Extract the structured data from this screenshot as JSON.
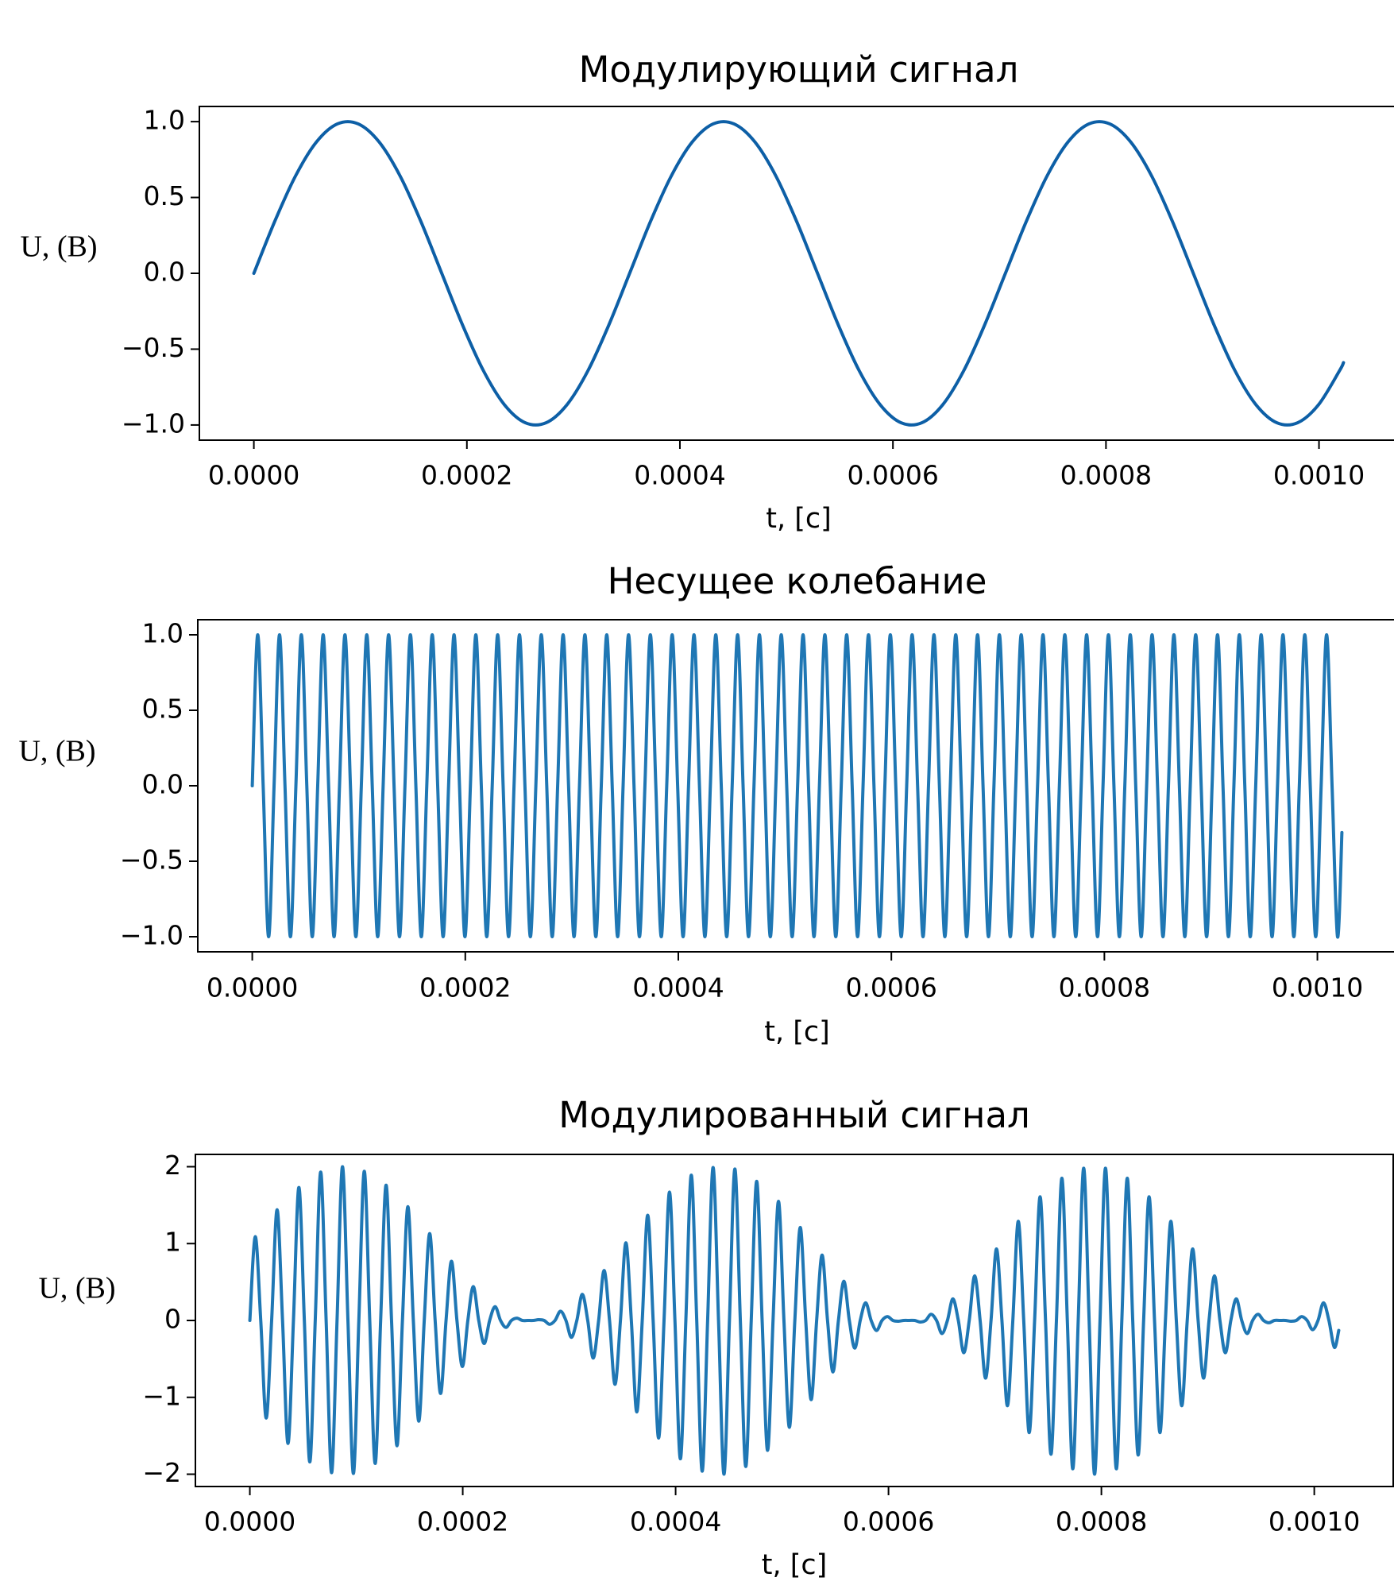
{
  "chart_data": [
    {
      "type": "line",
      "title": "Модулирующий сигнал",
      "xlabel": "t, [с]",
      "ylabel": "U, (В)",
      "color": "#0d5fa6",
      "x": [
        0,
        1.96e-05,
        3.92e-05,
        5.88e-05,
        7.84e-05,
        9.8e-05,
        0.0001176,
        0.0001372,
        0.0001568,
        0.0001764,
        0.000196,
        0.0002156,
        0.0002352,
        0.0002548,
        0.0002744,
        0.000294,
        0.0003136,
        0.0003332,
        0.0003528,
        0.0003724,
        0.000392,
        0.0004116,
        0.0004312,
        0.0004508,
        0.0004704,
        0.00049,
        0.0005096,
        0.0005292,
        0.0005488,
        0.0005684,
        0.000588,
        0.0006076,
        0.0006272,
        0.0006468,
        0.0006664,
        0.000686,
        0.0007056,
        0.0007252,
        0.0007448,
        0.0007644,
        0.000784,
        0.0008036,
        0.0008232,
        0.0008428,
        0.0008624,
        0.000882,
        0.0009016,
        0.0009212,
        0.0009408,
        0.0009604,
        0.00098,
        0.0009996,
        0.0010192,
        0.001023
      ],
      "values": [
        0,
        0.342,
        0.643,
        0.866,
        0.985,
        0.985,
        0.866,
        0.643,
        0.342,
        0,
        -0.342,
        -0.643,
        -0.866,
        -0.985,
        -0.985,
        -0.866,
        -0.643,
        -0.342,
        0,
        0.342,
        0.643,
        0.866,
        0.985,
        0.985,
        0.866,
        0.643,
        0.342,
        0,
        -0.342,
        -0.643,
        -0.866,
        -0.985,
        -0.985,
        -0.866,
        -0.643,
        -0.342,
        0,
        0.342,
        0.643,
        0.866,
        0.985,
        0.985,
        0.866,
        0.643,
        0.342,
        0,
        -0.342,
        -0.643,
        -0.866,
        -0.985,
        -0.985,
        -0.866,
        -0.643,
        -0.589
      ],
      "xlim": [
        -5.115e-05,
        0.00107415
      ],
      "ylim": [
        -1.1,
        1.1
      ],
      "xticks": [
        {
          "value": 0,
          "label": "0.0000"
        },
        {
          "value": 0.0002,
          "label": "0.0002"
        },
        {
          "value": 0.0004,
          "label": "0.0004"
        },
        {
          "value": 0.0006,
          "label": "0.0006"
        },
        {
          "value": 0.0008,
          "label": "0.0008"
        },
        {
          "value": 0.001,
          "label": "0.0010"
        }
      ],
      "yticks": [
        {
          "value": -1,
          "label": "−1.0"
        },
        {
          "value": -0.5,
          "label": "−0.5"
        },
        {
          "value": 0,
          "label": "0.0"
        },
        {
          "value": 0.5,
          "label": "0.5"
        },
        {
          "value": 1,
          "label": "1.0"
        }
      ]
    },
    {
      "type": "line",
      "title": "Несущее колебание",
      "xlabel": "t, [с]",
      "ylabel": "U, (В)",
      "color": "#1f77b4",
      "x": [
        0,
        5.12e-06,
        1.024e-05,
        1.536e-05,
        2.048e-05,
        2.56e-05,
        3.072e-05,
        3.584e-05,
        4.096e-05,
        4.608e-05,
        5.12e-05,
        5.632e-05,
        6.144e-05,
        6.656e-05,
        7.168e-05,
        7.68e-05,
        8.192e-05,
        8.704e-05,
        9.216e-05,
        9.728e-05,
        0.0001024,
        0.00010752,
        0.00011264,
        0.00011776,
        0.00012288,
        0.000128,
        0.00013312,
        0.00013824,
        0.00014336,
        0.00014848,
        0.0001536,
        0.00015872,
        0.00016384,
        0.00016896,
        0.00017408,
        0.0001792,
        0.00018432,
        0.00018944,
        0.00019456,
        0.00019968,
        0.0002048,
        0.00020992,
        0.00021504,
        0.00022016,
        0.00022528,
        0.0002304,
        0.00023552,
        0.00024064,
        0.00024576,
        0.00025088,
        0.000256,
        0.00026112,
        0.00026624,
        0.00027136,
        0.00027648,
        0.0002816,
        0.00028672,
        0.00029184,
        0.00029696,
        0.00030208,
        0.0003072,
        0.00031232,
        0.00031744,
        0.00032256,
        0.00032768,
        0.0003328,
        0.00033792,
        0.00034304,
        0.00034816,
        0.00035328,
        0.0003584,
        0.00036352,
        0.00036864,
        0.00037376,
        0.00037888,
        0.000384,
        0.00038912,
        0.00039424,
        0.00039936,
        0.00040448,
        0.0004096,
        0.00041472,
        0.00041984,
        0.00042496,
        0.00043008,
        0.0004352,
        0.00044032,
        0.00044544,
        0.00045056,
        0.00045568,
        0.0004608,
        0.00046592,
        0.00047104,
        0.00047616,
        0.00048128,
        0.0004864,
        0.00049152,
        0.00049664,
        0.00050176,
        0.00050688,
        0.000512,
        0.00051712,
        0.00052224,
        0.00052736,
        0.00053248,
        0.0005376,
        0.00054272,
        0.00054784,
        0.00055296,
        0.00055808,
        0.0005632,
        0.00056832,
        0.00057344,
        0.00057856,
        0.00058368,
        0.0005888,
        0.00059392,
        0.00059904,
        0.00060416,
        0.00060928,
        0.0006144,
        0.00061952,
        0.00062464,
        0.00062976,
        0.00063488,
        0.00064,
        0.00064512,
        0.00065024,
        0.00065536,
        0.00066048,
        0.0006656,
        0.00067072,
        0.00067584,
        0.00068096,
        0.00068608,
        0.0006912,
        0.00069632,
        0.00070144,
        0.00070656,
        0.00071168,
        0.0007168,
        0.00072192,
        0.00072704,
        0.00073216,
        0.00073728,
        0.0007424,
        0.00074752,
        0.00075264,
        0.00075776,
        0.00076288,
        0.000768,
        0.00077312,
        0.00077824,
        0.00078336,
        0.00078848,
        0.0007936,
        0.00079872,
        0.00080384,
        0.00080896,
        0.00081408,
        0.0008192,
        0.00082432,
        0.00082944,
        0.00083456,
        0.00083968,
        0.0008448,
        0.00084992,
        0.00085504,
        0.00086016,
        0.00086528,
        0.0008704,
        0.00087552,
        0.00088064,
        0.00088576,
        0.00089088,
        0.000896,
        0.00090112,
        0.00090624,
        0.00091136,
        0.00091648,
        0.0009216,
        0.00092672,
        0.00093184,
        0.00093696,
        0.00094208,
        0.0009472,
        0.00095232,
        0.00095744,
        0.00096256,
        0.00096768,
        0.0009728,
        0.00097792,
        0.00098304,
        0.00098816,
        0.00099328,
        0.0009984,
        0.00100352,
        0.00100864,
        0.00101376,
        0.00101888,
        0.001023
      ],
      "values": [
        0,
        1,
        0,
        -1,
        0,
        1,
        0,
        -1,
        0,
        1,
        0,
        -1,
        0,
        1,
        0,
        -1,
        0,
        1,
        0,
        -1,
        0,
        1,
        0,
        -1,
        0,
        1,
        0,
        -1,
        0,
        1,
        0,
        -1,
        0,
        1,
        0,
        -1,
        0,
        1,
        0,
        -1,
        0,
        1,
        0,
        -1,
        0,
        1,
        0,
        -1,
        0,
        1,
        0,
        -1,
        0,
        1,
        0,
        -1,
        0,
        1,
        0,
        -1,
        0,
        1,
        0,
        -1,
        0,
        1,
        0,
        -1,
        0,
        1,
        0,
        -1,
        0,
        1,
        0,
        -1,
        0,
        1,
        0,
        -1,
        0,
        1,
        0,
        -1,
        0,
        1,
        0,
        -1,
        0,
        1,
        0,
        -1,
        0,
        1,
        0,
        -1,
        0,
        1,
        0,
        -1,
        0,
        1,
        0,
        -1,
        0,
        1,
        0,
        -1,
        0,
        1,
        0,
        -1,
        0,
        1,
        0,
        -1,
        0,
        1,
        0,
        -1,
        0,
        1,
        0,
        -1,
        0,
        1,
        0,
        -1,
        0,
        1,
        0,
        -1,
        0,
        1,
        0,
        -1,
        0,
        1,
        0,
        -1,
        0,
        1,
        0,
        -1,
        0,
        1,
        0,
        -1,
        0,
        1,
        0,
        -1,
        0,
        1,
        0,
        -1,
        0,
        1,
        0,
        -1,
        0,
        1,
        0,
        -1,
        0,
        1,
        0,
        -1,
        0,
        1,
        0,
        -1,
        0,
        1,
        0,
        -1,
        0,
        1,
        0,
        -1,
        0,
        1,
        0,
        -1,
        0,
        1,
        0,
        -1,
        0,
        1,
        0,
        -1,
        0,
        1,
        0,
        -1,
        0,
        1,
        0,
        -1,
        -0.31
      ],
      "xlim": [
        -5.115e-05,
        0.00107415
      ],
      "ylim": [
        -1.1,
        1.1
      ],
      "xticks": [
        {
          "value": 0,
          "label": "0.0000"
        },
        {
          "value": 0.0002,
          "label": "0.0002"
        },
        {
          "value": 0.0004,
          "label": "0.0004"
        },
        {
          "value": 0.0006,
          "label": "0.0006"
        },
        {
          "value": 0.0008,
          "label": "0.0008"
        },
        {
          "value": 0.001,
          "label": "0.0010"
        }
      ],
      "yticks": [
        {
          "value": -1,
          "label": "−1.0"
        },
        {
          "value": -0.5,
          "label": "−0.5"
        },
        {
          "value": 0,
          "label": "0.0"
        },
        {
          "value": 0.5,
          "label": "0.5"
        },
        {
          "value": 1,
          "label": "1.0"
        }
      ]
    },
    {
      "type": "line",
      "title": "Модулированный сигнал",
      "xlabel": "t, [с]",
      "ylabel": "U, (В)",
      "color": "#1f77b4",
      "x": [
        0,
        5.12e-06,
        1.024e-05,
        1.536e-05,
        2.048e-05,
        2.56e-05,
        3.072e-05,
        3.584e-05,
        4.096e-05,
        4.608e-05,
        5.12e-05,
        5.632e-05,
        6.144e-05,
        6.656e-05,
        7.168e-05,
        7.68e-05,
        8.192e-05,
        8.704e-05,
        9.216e-05,
        9.728e-05,
        0.0001024,
        0.00010752,
        0.00011264,
        0.00011776,
        0.00012288,
        0.000128,
        0.00013312,
        0.00013824,
        0.00014336,
        0.00014848,
        0.0001536,
        0.00015872,
        0.00016384,
        0.00016896,
        0.00017408,
        0.0001792,
        0.00018432,
        0.00018944,
        0.00019456,
        0.00019968,
        0.0002048,
        0.00020992,
        0.00021504,
        0.00022016,
        0.00022528,
        0.0002304,
        0.00023552,
        0.00024064,
        0.00024576,
        0.00025088,
        0.000256,
        0.00026112,
        0.00026624,
        0.00027136,
        0.00027648,
        0.0002816,
        0.00028672,
        0.00029184,
        0.00029696,
        0.00030208,
        0.0003072,
        0.00031232,
        0.00031744,
        0.00032256,
        0.00032768,
        0.0003328,
        0.00033792,
        0.00034304,
        0.00034816,
        0.00035328,
        0.0003584,
        0.00036352,
        0.00036864,
        0.00037376,
        0.00037888,
        0.000384,
        0.00038912,
        0.00039424,
        0.00039936,
        0.00040448,
        0.0004096,
        0.00041472,
        0.00041984,
        0.00042496,
        0.00043008,
        0.0004352,
        0.00044032,
        0.00044544,
        0.00045056,
        0.00045568,
        0.0004608,
        0.00046592,
        0.00047104,
        0.00047616,
        0.00048128,
        0.0004864,
        0.00049152,
        0.00049664,
        0.00050176,
        0.00050688,
        0.000512,
        0.00051712,
        0.00052224,
        0.00052736,
        0.00053248,
        0.0005376,
        0.00054272,
        0.00054784,
        0.00055296,
        0.00055808,
        0.0005632,
        0.00056832,
        0.00057344,
        0.00057856,
        0.00058368,
        0.0005888,
        0.00059392,
        0.00059904,
        0.00060416,
        0.00060928,
        0.0006144,
        0.00061952,
        0.00062464,
        0.00062976,
        0.00063488,
        0.00064,
        0.00064512,
        0.00065024,
        0.00065536,
        0.00066048,
        0.0006656,
        0.00067072,
        0.00067584,
        0.00068096,
        0.00068608,
        0.0006912,
        0.00069632,
        0.00070144,
        0.00070656,
        0.00071168,
        0.0007168,
        0.00072192,
        0.00072704,
        0.00073216,
        0.00073728,
        0.0007424,
        0.00074752,
        0.00075264,
        0.00075776,
        0.00076288,
        0.000768,
        0.00077312,
        0.00077824,
        0.00078336,
        0.00078848,
        0.0007936,
        0.00079872,
        0.00080384,
        0.00080896,
        0.00081408,
        0.0008192,
        0.00082432,
        0.00082944,
        0.00083456,
        0.00083968,
        0.0008448,
        0.00084992,
        0.00085504,
        0.00086016,
        0.00086528,
        0.0008704,
        0.00087552,
        0.00088064,
        0.00088576,
        0.00089088,
        0.000896,
        0.00090112,
        0.00090624,
        0.00091136,
        0.00091648,
        0.0009216,
        0.00092672,
        0.00093184,
        0.00093696,
        0.00094208,
        0.0009472,
        0.00095232,
        0.00095744,
        0.00096256,
        0.00096768,
        0.0009728,
        0.00097792,
        0.00098304,
        0.00098816,
        0.00099328,
        0.0009984,
        0.00100352,
        0.00100864,
        0.00101376,
        0.00101888,
        0.001023
      ],
      "values": [
        0,
        1.09,
        0,
        -1.27,
        0,
        1.44,
        0,
        -1.6,
        0,
        1.73,
        0,
        -1.84,
        0,
        1.93,
        0,
        -1.98,
        0,
        2,
        0,
        -1.99,
        0,
        1.94,
        0,
        -1.86,
        0,
        1.76,
        0,
        -1.63,
        0,
        1.48,
        0,
        -1.31,
        0,
        1.13,
        0,
        -0.95,
        0,
        0.77,
        0,
        -0.6,
        0,
        0.44,
        0,
        -0.3,
        0,
        0.18,
        0,
        -0.09,
        0,
        0.03,
        0,
        0,
        0,
        0.01,
        0,
        -0.05,
        0,
        0.12,
        0,
        -0.22,
        0,
        0.34,
        0,
        -0.49,
        0,
        0.65,
        0,
        -0.83,
        0,
        1.01,
        0,
        -1.19,
        0,
        1.37,
        0,
        -1.53,
        0,
        1.67,
        0,
        -1.8,
        0,
        1.89,
        0,
        -1.96,
        0,
        1.99,
        0,
        -2,
        0,
        1.97,
        0,
        -1.9,
        0,
        1.81,
        0,
        -1.69,
        0,
        1.55,
        0,
        -1.39,
        0,
        1.21,
        0,
        -1.03,
        0,
        0.85,
        0,
        -0.67,
        0,
        0.51,
        0,
        -0.36,
        0,
        0.23,
        0,
        -0.13,
        0,
        0.05,
        0,
        -0.01,
        0,
        0,
        0,
        -0.02,
        0,
        0.08,
        0,
        -0.17,
        0,
        0.28,
        0,
        -0.42,
        0,
        0.58,
        0,
        -0.75,
        0,
        0.93,
        0,
        -1.11,
        0,
        1.29,
        0,
        -1.46,
        0,
        1.61,
        0,
        -1.74,
        0,
        1.85,
        0,
        -1.93,
        0,
        1.98,
        0,
        -2,
        0,
        1.98,
        0,
        -1.93,
        0,
        1.85,
        0,
        -1.75,
        0,
        1.61,
        0,
        -1.46,
        0,
        1.29,
        0,
        -1.11,
        0,
        0.93,
        0,
        -0.75,
        0,
        0.58,
        0,
        -0.42,
        0,
        0.28,
        0,
        -0.17,
        0,
        0.08,
        0,
        -0.03,
        0,
        0,
        0,
        -0.01,
        0,
        0.05,
        0,
        -0.12,
        0,
        0.23,
        0,
        -0.35,
        -0.13
      ],
      "xlim": [
        -5.115e-05,
        0.00107415
      ],
      "ylim": [
        -2.16,
        2.16
      ],
      "xticks": [
        {
          "value": 0,
          "label": "0.0000"
        },
        {
          "value": 0.0002,
          "label": "0.0002"
        },
        {
          "value": 0.0004,
          "label": "0.0004"
        },
        {
          "value": 0.0006,
          "label": "0.0006"
        },
        {
          "value": 0.0008,
          "label": "0.0008"
        },
        {
          "value": 0.001,
          "label": "0.0010"
        }
      ],
      "yticks": [
        {
          "value": -2,
          "label": "−2"
        },
        {
          "value": -1,
          "label": "−1"
        },
        0,
        1,
        2
      ]
    }
  ]
}
